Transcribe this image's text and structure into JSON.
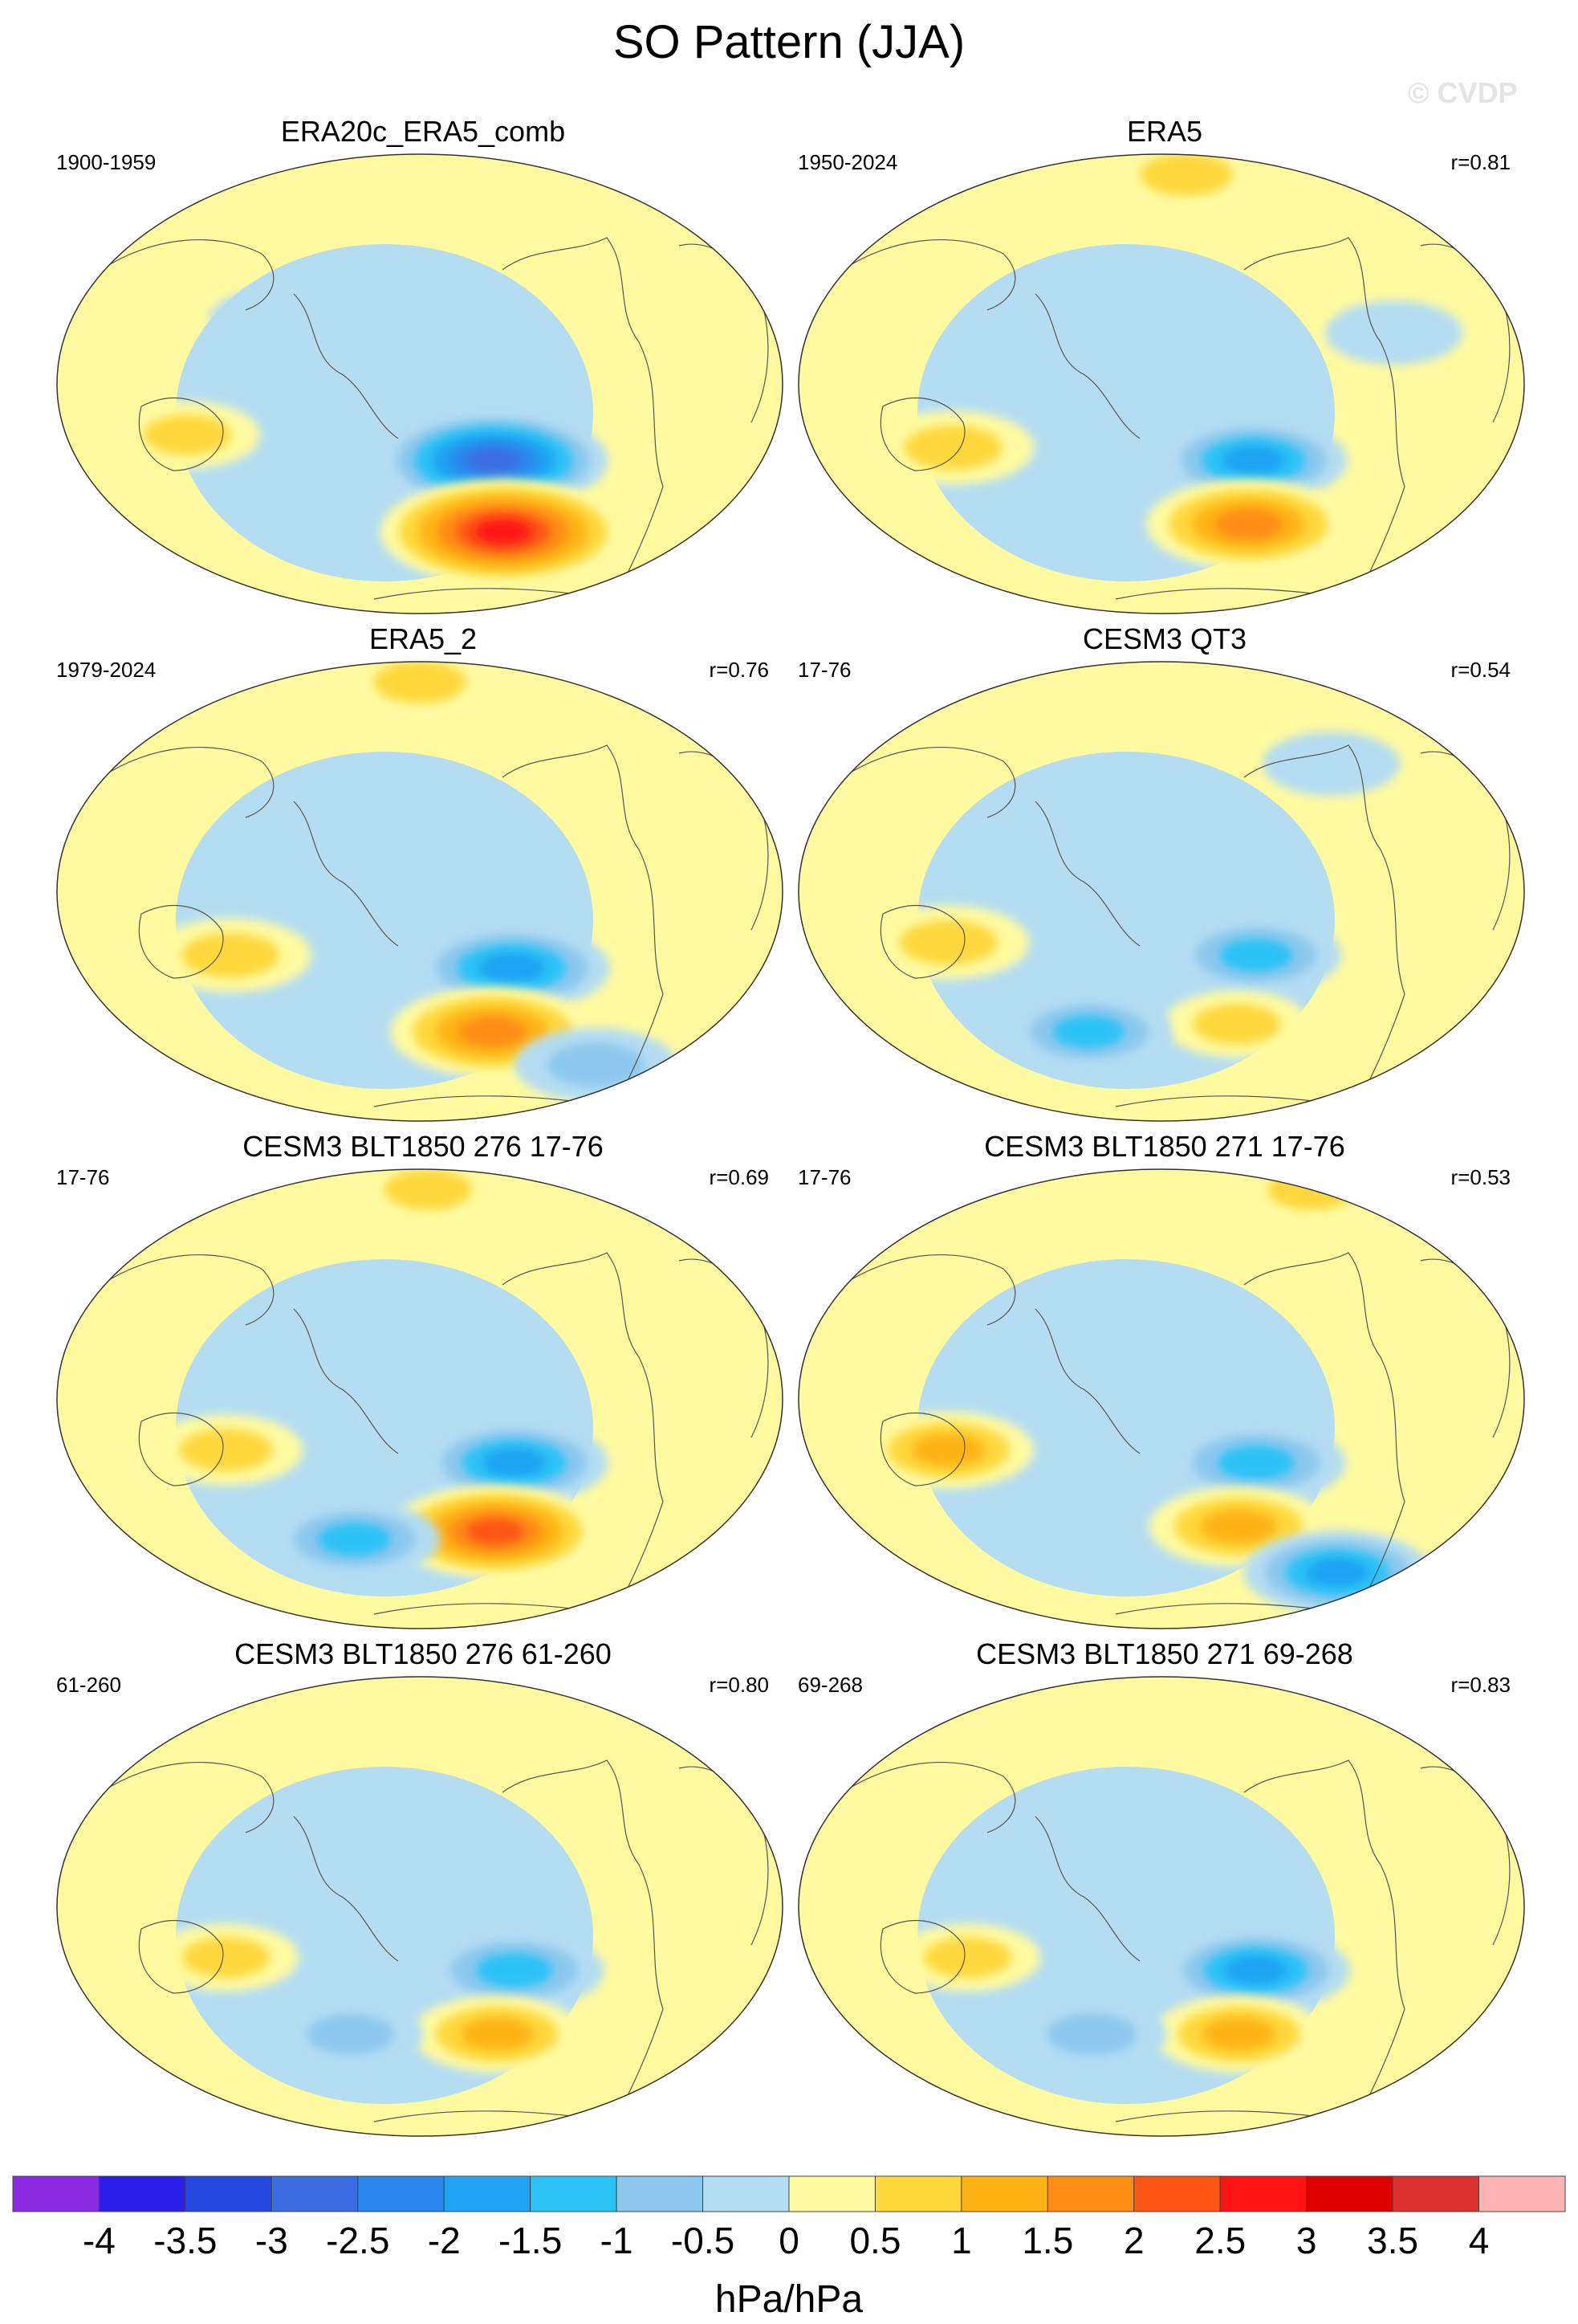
{
  "title": "SO Pattern (JJA)",
  "watermark": "© CVDP",
  "chart_data": {
    "type": "heatmap",
    "title": "SO Pattern (JJA)",
    "projection": "global map",
    "units": "hPa/hPa",
    "levels": [
      -4,
      -3.5,
      -3,
      -2.5,
      -2,
      -1.5,
      -1,
      -0.5,
      0,
      0.5,
      1,
      1.5,
      2,
      2.5,
      3,
      3.5,
      4
    ],
    "level_labels": [
      "-4",
      "-3.5",
      "-3",
      "-2.5",
      "-2",
      "-1.5",
      "-1",
      "-0.5",
      "0",
      "0.5",
      "1",
      "1.5",
      "2",
      "2.5",
      "3",
      "3.5",
      "4"
    ],
    "colors": [
      "#8a2be2",
      "#2b1ee8",
      "#2447e0",
      "#3c6de0",
      "#2b86ee",
      "#1fa3f2",
      "#2cc2f6",
      "#8cc8ee",
      "#b4ddf2",
      "#fffaa0",
      "#ffd83c",
      "#ffb414",
      "#ff8c14",
      "#ff5514",
      "#ff1414",
      "#e00000",
      "#dc3232",
      "#ffb4b4"
    ],
    "panels": [
      {
        "title": "ERA20c_ERA5_comb",
        "period": "1900-1959",
        "r": "",
        "features": [
          {
            "lon": 170,
            "lat": 82,
            "value": 0.2
          },
          {
            "lon": -110,
            "lat": -30,
            "value": -2.8
          },
          {
            "lon": -90,
            "lat": -58,
            "value": 3.2
          },
          {
            "lon": 90,
            "lat": -20,
            "value": 0.8
          },
          {
            "lon": 135,
            "lat": 25,
            "value": -0.6
          },
          {
            "lon": -150,
            "lat": 10,
            "value": -0.6
          }
        ]
      },
      {
        "title": "ERA5",
        "period": "1950-2024",
        "r": "r=0.81",
        "features": [
          {
            "lon": -120,
            "lat": 82,
            "value": 1.0
          },
          {
            "lon": -100,
            "lat": -30,
            "value": -1.8
          },
          {
            "lon": -90,
            "lat": -55,
            "value": 2.2
          },
          {
            "lon": 100,
            "lat": -25,
            "value": 1.2
          },
          {
            "lon": 140,
            "lat": 20,
            "value": -0.6
          },
          {
            "lon": -30,
            "lat": 20,
            "value": -0.6
          }
        ]
      },
      {
        "title": "ERA5_2",
        "period": "1979-2024",
        "r": "r=0.76",
        "features": [
          {
            "lon": -150,
            "lat": 82,
            "value": 1.0
          },
          {
            "lon": -100,
            "lat": -30,
            "value": -2.0
          },
          {
            "lon": -100,
            "lat": -55,
            "value": 2.2
          },
          {
            "lon": 110,
            "lat": -25,
            "value": 1.2
          },
          {
            "lon": 0,
            "lat": -68,
            "value": -1.2
          },
          {
            "lon": 150,
            "lat": 20,
            "value": -0.6
          }
        ]
      },
      {
        "title": "CESM3 QT3",
        "period": "17-76",
        "r": "r=0.54",
        "features": [
          {
            "lon": -100,
            "lat": -25,
            "value": -1.4
          },
          {
            "lon": -100,
            "lat": -52,
            "value": 0.8
          },
          {
            "lon": 100,
            "lat": -20,
            "value": 1.2
          },
          {
            "lon": 160,
            "lat": -55,
            "value": -1.3
          },
          {
            "lon": 150,
            "lat": 15,
            "value": -0.6
          },
          {
            "lon": -40,
            "lat": 50,
            "value": -0.6
          }
        ]
      },
      {
        "title": "CESM3 BLT1850 276 17-76",
        "period": "17-76",
        "r": "r=0.69",
        "features": [
          {
            "lon": -100,
            "lat": -25,
            "value": -1.8
          },
          {
            "lon": -100,
            "lat": -52,
            "value": 2.4
          },
          {
            "lon": 110,
            "lat": -20,
            "value": 1.0
          },
          {
            "lon": 165,
            "lat": -55,
            "value": -1.4
          },
          {
            "lon": 155,
            "lat": 20,
            "value": -0.6
          },
          {
            "lon": -140,
            "lat": 82,
            "value": 0.8
          }
        ]
      },
      {
        "title": "CESM3 BLT1850 271 17-76",
        "period": "17-76",
        "r": "r=0.53",
        "features": [
          {
            "lon": -100,
            "lat": -25,
            "value": -1.6
          },
          {
            "lon": -100,
            "lat": -50,
            "value": 1.6
          },
          {
            "lon": 100,
            "lat": -20,
            "value": 1.4
          },
          {
            "lon": 0,
            "lat": -68,
            "value": -1.8
          },
          {
            "lon": 150,
            "lat": 15,
            "value": -0.6
          },
          {
            "lon": 30,
            "lat": 82,
            "value": 0.8
          }
        ]
      },
      {
        "title": "CESM3 BLT1850 276 61-260",
        "period": "61-260",
        "r": "r=0.80",
        "features": [
          {
            "lon": -100,
            "lat": -25,
            "value": -1.6
          },
          {
            "lon": -100,
            "lat": -50,
            "value": 1.4
          },
          {
            "lon": 110,
            "lat": -20,
            "value": 0.8
          },
          {
            "lon": 165,
            "lat": -50,
            "value": -0.8
          },
          {
            "lon": 150,
            "lat": 15,
            "value": -0.6
          }
        ]
      },
      {
        "title": "CESM3 BLT1850 271 69-268",
        "period": "69-268",
        "r": "r=0.83",
        "features": [
          {
            "lon": -100,
            "lat": -25,
            "value": -1.8
          },
          {
            "lon": -100,
            "lat": -50,
            "value": 1.4
          },
          {
            "lon": 110,
            "lat": -20,
            "value": 0.8
          },
          {
            "lon": 165,
            "lat": -50,
            "value": -0.9
          },
          {
            "lon": 150,
            "lat": 15,
            "value": -0.6
          }
        ]
      }
    ]
  }
}
